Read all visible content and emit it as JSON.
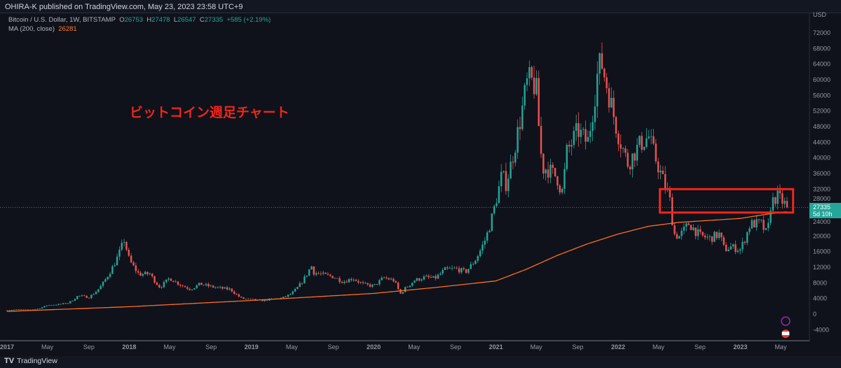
{
  "publisher_line": "OHIRA-K published on TradingView.com, May 23, 2023 23:58 UTC+9",
  "legend": {
    "symbol": "Bitcoin / U.S. Dollar, 1W, BITSTAMP",
    "o_label": "O",
    "o": "26753",
    "h_label": "H",
    "h": "27478",
    "l_label": "L",
    "l": "26547",
    "c_label": "C",
    "c": "27335",
    "change": "+585 (+2.19%)",
    "ma_label": "MA (200, close)",
    "ma_value": "26281"
  },
  "annotation": "ビットコイン週足チャート",
  "price_tag": {
    "price": "27335",
    "countdown": "5d 10h"
  },
  "footer_brand": "TradingView",
  "colors": {
    "up": "#26a69a",
    "down": "#ef5350",
    "ma": "#ff6d1f",
    "box": "#f0261a",
    "bg": "#0f121b"
  },
  "chart_data": {
    "type": "candlestick",
    "title": "Bitcoin / U.S. Dollar, 1W, BITSTAMP",
    "currency_label": "USD",
    "ylim": [
      -4000,
      72000
    ],
    "y_ticks": [
      "72000",
      "68000",
      "64000",
      "60000",
      "56000",
      "52000",
      "48000",
      "44000",
      "40000",
      "36000",
      "32000",
      "28000",
      "24000",
      "20000",
      "16000",
      "12000",
      "8000",
      "4000",
      "0",
      "-4000"
    ],
    "x_ticks": [
      {
        "t": 2017.0,
        "label": "2017"
      },
      {
        "t": 2017.33,
        "label": "May"
      },
      {
        "t": 2017.67,
        "label": "Sep"
      },
      {
        "t": 2018.0,
        "label": "2018"
      },
      {
        "t": 2018.33,
        "label": "May"
      },
      {
        "t": 2018.67,
        "label": "Sep"
      },
      {
        "t": 2019.0,
        "label": "2019"
      },
      {
        "t": 2019.33,
        "label": "May"
      },
      {
        "t": 2019.67,
        "label": "Sep"
      },
      {
        "t": 2020.0,
        "label": "2020"
      },
      {
        "t": 2020.33,
        "label": "May"
      },
      {
        "t": 2020.67,
        "label": "Sep"
      },
      {
        "t": 2021.0,
        "label": "2021"
      },
      {
        "t": 2021.33,
        "label": "May"
      },
      {
        "t": 2021.67,
        "label": "Sep"
      },
      {
        "t": 2022.0,
        "label": "2022"
      },
      {
        "t": 2022.33,
        "label": "May"
      },
      {
        "t": 2022.67,
        "label": "Sep"
      },
      {
        "t": 2023.0,
        "label": "2023"
      },
      {
        "t": 2023.33,
        "label": "May"
      }
    ],
    "close_anchors": [
      [
        2017.0,
        970
      ],
      [
        2017.08,
        1190
      ],
      [
        2017.17,
        1080
      ],
      [
        2017.25,
        1350
      ],
      [
        2017.33,
        2300
      ],
      [
        2017.42,
        2480
      ],
      [
        2017.5,
        2870
      ],
      [
        2017.58,
        4700
      ],
      [
        2017.67,
        4340
      ],
      [
        2017.75,
        6470
      ],
      [
        2017.83,
        10200
      ],
      [
        2017.96,
        19200
      ],
      [
        2018.0,
        13900
      ],
      [
        2018.08,
        10200
      ],
      [
        2018.17,
        10300
      ],
      [
        2018.25,
        6900
      ],
      [
        2018.33,
        9250
      ],
      [
        2018.42,
        7500
      ],
      [
        2018.5,
        6400
      ],
      [
        2018.58,
        7730
      ],
      [
        2018.67,
        7030
      ],
      [
        2018.75,
        6630
      ],
      [
        2018.83,
        6320
      ],
      [
        2018.92,
        4020
      ],
      [
        2019.0,
        3740
      ],
      [
        2019.08,
        3460
      ],
      [
        2019.17,
        3850
      ],
      [
        2019.25,
        4100
      ],
      [
        2019.33,
        5300
      ],
      [
        2019.42,
        8570
      ],
      [
        2019.49,
        12500
      ],
      [
        2019.5,
        10800
      ],
      [
        2019.58,
        10100
      ],
      [
        2019.67,
        9600
      ],
      [
        2019.75,
        8300
      ],
      [
        2019.83,
        9200
      ],
      [
        2019.92,
        7550
      ],
      [
        2020.0,
        7200
      ],
      [
        2020.08,
        9350
      ],
      [
        2020.17,
        8600
      ],
      [
        2020.22,
        5200
      ],
      [
        2020.25,
        6400
      ],
      [
        2020.33,
        8600
      ],
      [
        2020.42,
        9450
      ],
      [
        2020.5,
        9140
      ],
      [
        2020.58,
        11350
      ],
      [
        2020.67,
        11650
      ],
      [
        2020.75,
        10780
      ],
      [
        2020.83,
        13800
      ],
      [
        2020.92,
        19700
      ],
      [
        2021.0,
        29000
      ],
      [
        2021.05,
        36000
      ],
      [
        2021.08,
        33100
      ],
      [
        2021.17,
        45200
      ],
      [
        2021.25,
        58800
      ],
      [
        2021.28,
        60000
      ],
      [
        2021.33,
        57700
      ],
      [
        2021.38,
        37300
      ],
      [
        2021.42,
        37300
      ],
      [
        2021.5,
        35000
      ],
      [
        2021.54,
        31000
      ],
      [
        2021.58,
        41500
      ],
      [
        2021.67,
        47100
      ],
      [
        2021.75,
        43800
      ],
      [
        2021.83,
        61300
      ],
      [
        2021.86,
        65000
      ],
      [
        2021.92,
        57000
      ],
      [
        2022.0,
        46200
      ],
      [
        2022.08,
        38500
      ],
      [
        2022.17,
        43200
      ],
      [
        2022.25,
        45500
      ],
      [
        2022.33,
        37700
      ],
      [
        2022.42,
        30000
      ],
      [
        2022.46,
        20500
      ],
      [
        2022.5,
        19900
      ],
      [
        2022.58,
        23300
      ],
      [
        2022.67,
        20000
      ],
      [
        2022.75,
        19400
      ],
      [
        2022.83,
        20500
      ],
      [
        2022.87,
        16500
      ],
      [
        2022.92,
        17200
      ],
      [
        2023.0,
        16550
      ],
      [
        2023.08,
        23100
      ],
      [
        2023.17,
        23150
      ],
      [
        2023.22,
        20300
      ],
      [
        2023.25,
        28500
      ],
      [
        2023.3,
        30200
      ],
      [
        2023.33,
        29300
      ],
      [
        2023.39,
        27335
      ]
    ],
    "ma_200": {
      "name": "MA (200, close)",
      "points": [
        [
          2017.0,
          700
        ],
        [
          2018.0,
          1900
        ],
        [
          2019.0,
          3500
        ],
        [
          2020.0,
          5300
        ],
        [
          2020.5,
          6800
        ],
        [
          2021.0,
          8500
        ],
        [
          2021.25,
          11500
        ],
        [
          2021.5,
          15000
        ],
        [
          2021.75,
          18000
        ],
        [
          2022.0,
          20500
        ],
        [
          2022.25,
          22500
        ],
        [
          2022.5,
          23500
        ],
        [
          2022.75,
          24000
        ],
        [
          2023.0,
          24500
        ],
        [
          2023.2,
          25500
        ],
        [
          2023.39,
          26281
        ]
      ]
    },
    "last_price": 27335,
    "highlight_box": {
      "from": 2022.33,
      "to": 2023.42,
      "low": 26000,
      "high": 32000
    }
  }
}
